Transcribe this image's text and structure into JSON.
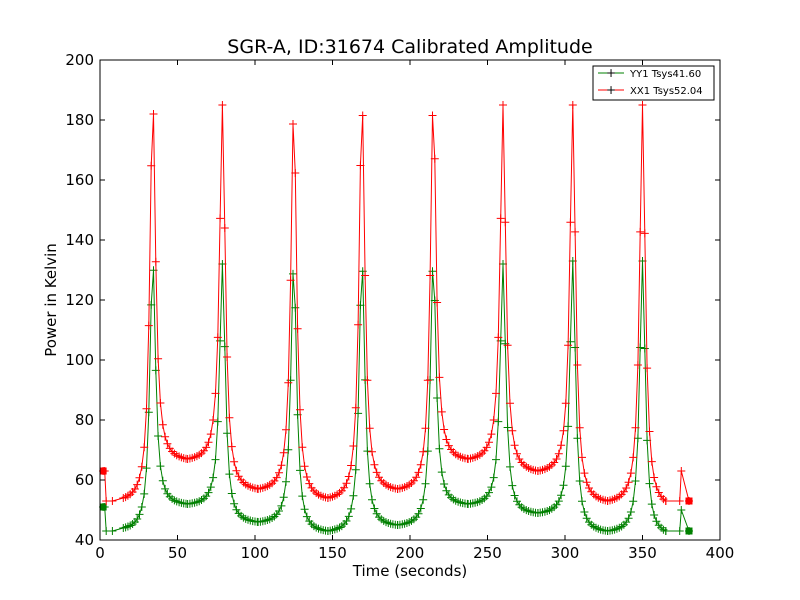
{
  "chart_data": {
    "type": "line",
    "title": "SGR-A, ID:31674 Calibrated Amplitude",
    "xlabel": "Time (seconds)",
    "ylabel": "Power in Kelvin",
    "xlim": [
      0,
      400
    ],
    "ylim": [
      40,
      200
    ],
    "xticks": [
      "0",
      "50",
      "100",
      "150",
      "200",
      "250",
      "300",
      "350",
      "400"
    ],
    "yticks": [
      "40",
      "60",
      "80",
      "100",
      "120",
      "140",
      "160",
      "180",
      "200"
    ],
    "grid": false,
    "legend_position": "top-right",
    "peak_times": [
      34,
      79,
      125,
      169,
      215,
      260,
      305,
      350
    ],
    "series": [
      {
        "name": "YY1 Tsys41.60",
        "color": "#008000",
        "marker": "+",
        "peaks": [
          134,
          132,
          133,
          134,
          134,
          132,
          133,
          133
        ],
        "troughs": [
          52,
          46,
          43,
          45,
          52,
          49,
          43
        ],
        "start": [
          [
            2,
            51
          ],
          [
            3,
            51
          ],
          [
            4,
            43
          ],
          [
            8,
            43
          ],
          [
            15,
            44
          ]
        ],
        "end": [
          [
            365,
            43
          ],
          [
            374,
            43
          ],
          [
            375,
            50
          ],
          [
            380,
            43
          ]
        ]
      },
      {
        "name": "XX1 Tsys52.04",
        "color": "#ff0000",
        "marker": "+",
        "peaks": [
          188,
          185,
          185,
          188,
          188,
          185,
          185,
          185
        ],
        "troughs": [
          67,
          57,
          54,
          57,
          67,
          63,
          53
        ],
        "start": [
          [
            2,
            63
          ],
          [
            3,
            63
          ],
          [
            4,
            53
          ],
          [
            8,
            53
          ],
          [
            15,
            54
          ]
        ],
        "end": [
          [
            365,
            53
          ],
          [
            374,
            53
          ],
          [
            375,
            63
          ],
          [
            380,
            53
          ]
        ]
      }
    ]
  }
}
